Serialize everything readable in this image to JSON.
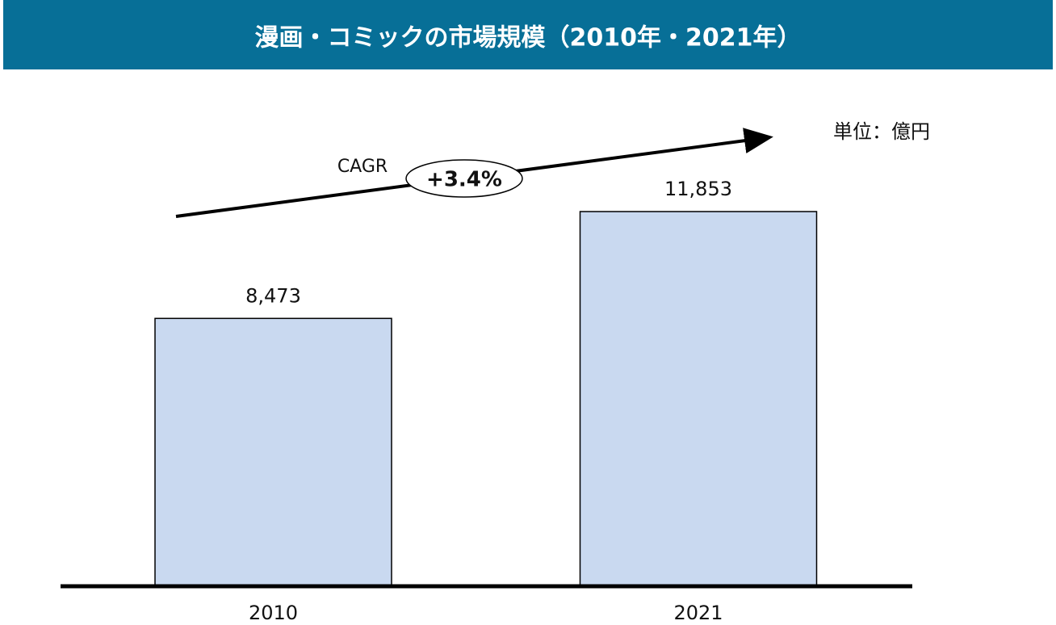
{
  "chart_data": {
    "type": "bar",
    "title": "漫画・コミックの市場規模（2010年・2021年）",
    "unit": "単位：億円",
    "annotations": [
      "CAGR",
      "+3.4%"
    ],
    "categories": [
      "2010",
      "2021"
    ],
    "values": [
      8473,
      11853
    ],
    "value_labels": [
      "8,473",
      "11,853"
    ],
    "color": "#c9d9f0"
  }
}
